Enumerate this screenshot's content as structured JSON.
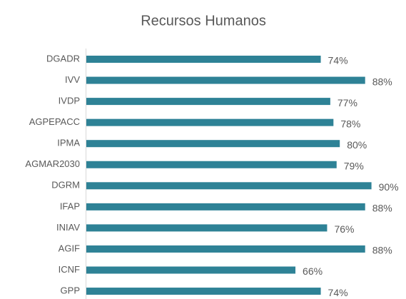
{
  "chart_data": {
    "type": "bar",
    "orientation": "horizontal",
    "title": "Recursos Humanos",
    "categories": [
      "DGADR",
      "IVV",
      "IVDP",
      "AGPEPACC",
      "IPMA",
      "AGMAR2030",
      "DGRM",
      "IFAP",
      "INIAV",
      "AGIF",
      "ICNF",
      "GPP"
    ],
    "values": [
      74,
      88,
      77,
      78,
      80,
      79,
      90,
      88,
      76,
      88,
      66,
      74
    ],
    "value_labels": [
      "74%",
      "88%",
      "77%",
      "78%",
      "80%",
      "79%",
      "90%",
      "88%",
      "76%",
      "88%",
      "66%",
      "74%"
    ],
    "color": "#2e8296"
  }
}
